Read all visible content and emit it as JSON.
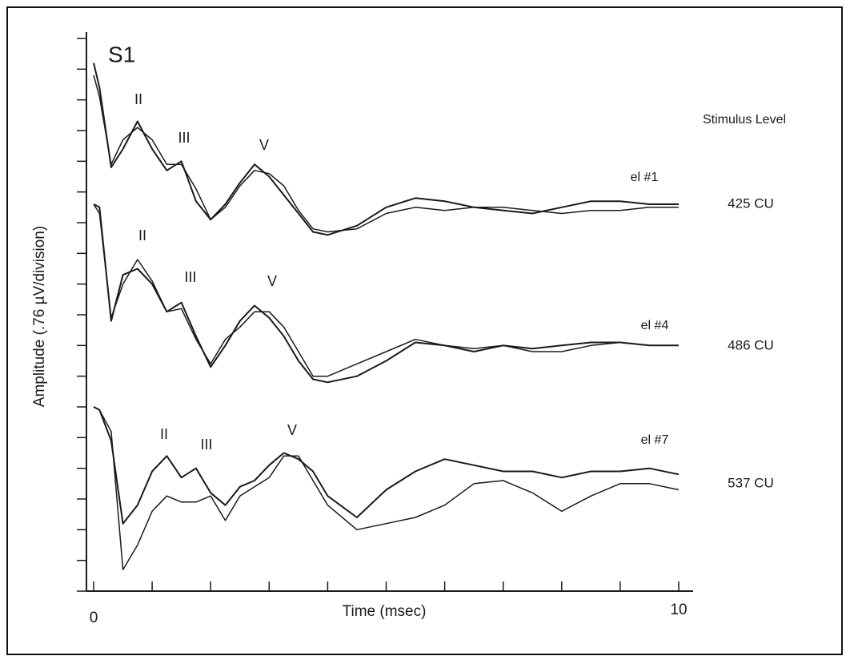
{
  "chart_data": {
    "type": "line",
    "panel_label": "S1",
    "xlabel": "Time (msec)",
    "ylabel": "Amplitude (.76 µV/division)",
    "legend_title": "Stimulus Level",
    "color": "#1a1a1a",
    "xlim": [
      0,
      10
    ],
    "xticks": [
      0,
      10
    ],
    "xdivisions": [
      0,
      1,
      2,
      3,
      4,
      5,
      6,
      7,
      8,
      9,
      10
    ],
    "ylim": [
      0,
      18
    ],
    "ydivisions": [
      0,
      1,
      2,
      3,
      4,
      5,
      6,
      7,
      8,
      9,
      10,
      11,
      12,
      13,
      14,
      15,
      16,
      17,
      18
    ],
    "x": [
      0,
      0.1,
      0.3,
      0.5,
      0.75,
      1,
      1.25,
      1.5,
      1.75,
      2,
      2.25,
      2.5,
      2.75,
      3,
      3.25,
      3.5,
      3.75,
      4,
      4.5,
      5,
      5.5,
      6,
      6.5,
      7,
      7.5,
      8,
      8.5,
      9,
      9.5,
      10
    ],
    "groups": [
      {
        "name": "el #1",
        "level": "425 CU",
        "peaks": [
          "II",
          "III",
          "V"
        ],
        "traces": [
          [
            17.2,
            16.4,
            13.8,
            14.4,
            15.3,
            14.4,
            13.7,
            14.0,
            12.7,
            12.1,
            12.6,
            13.3,
            13.9,
            13.5,
            12.9,
            12.3,
            11.7,
            11.6,
            11.9,
            12.5,
            12.8,
            12.7,
            12.5,
            12.4,
            12.3,
            12.5,
            12.7,
            12.7,
            12.6,
            12.6
          ],
          [
            16.8,
            16.1,
            13.9,
            14.7,
            15.1,
            14.7,
            13.9,
            13.9,
            13.1,
            12.1,
            12.5,
            13.2,
            13.7,
            13.6,
            13.2,
            12.4,
            11.8,
            11.7,
            11.8,
            12.3,
            12.5,
            12.4,
            12.5,
            12.5,
            12.4,
            12.3,
            12.4,
            12.4,
            12.5,
            12.5
          ]
        ]
      },
      {
        "name": "el #4",
        "level": "486 CU",
        "peaks": [
          "II",
          "III",
          "V"
        ],
        "traces": [
          [
            12.6,
            12.5,
            8.8,
            10.3,
            10.5,
            10.0,
            9.1,
            9.4,
            8.3,
            7.3,
            8.0,
            8.8,
            9.3,
            8.9,
            8.3,
            7.5,
            6.9,
            6.8,
            7.0,
            7.5,
            8.1,
            8.0,
            7.8,
            8.0,
            7.9,
            8.0,
            8.1,
            8.1,
            8.0,
            8.0
          ],
          [
            12.6,
            12.3,
            8.9,
            10.0,
            10.8,
            10.1,
            9.1,
            9.2,
            8.2,
            7.4,
            8.2,
            8.6,
            9.1,
            9.1,
            8.6,
            7.8,
            7.0,
            7.0,
            7.4,
            7.8,
            8.2,
            8.0,
            7.9,
            8.0,
            7.8,
            7.8,
            8.0,
            8.1,
            8.0,
            8.0
          ]
        ]
      },
      {
        "name": "el #7",
        "level": "537 CU",
        "peaks": [
          "II",
          "III",
          "V"
        ],
        "traces": [
          [
            6.0,
            5.9,
            4.9,
            2.2,
            2.8,
            3.9,
            4.4,
            3.7,
            4.0,
            3.2,
            2.8,
            3.4,
            3.6,
            4.1,
            4.5,
            4.3,
            3.9,
            3.1,
            2.4,
            3.3,
            3.9,
            4.3,
            4.1,
            3.9,
            3.9,
            3.7,
            3.9,
            3.9,
            4.0,
            3.8
          ],
          [
            6.0,
            5.9,
            5.2,
            0.7,
            1.5,
            2.6,
            3.1,
            2.9,
            2.9,
            3.1,
            2.3,
            3.1,
            3.4,
            3.7,
            4.4,
            4.4,
            3.6,
            2.8,
            2.0,
            2.2,
            2.4,
            2.8,
            3.5,
            3.6,
            3.2,
            2.6,
            3.1,
            3.5,
            3.5,
            3.3
          ]
        ]
      }
    ]
  }
}
